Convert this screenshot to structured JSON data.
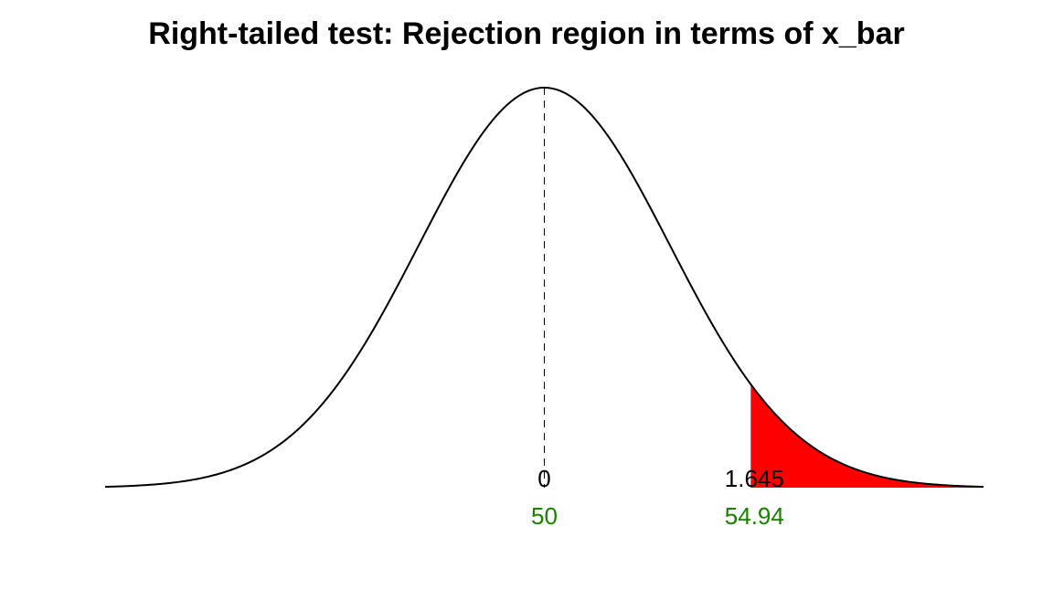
{
  "chart_data": {
    "type": "area",
    "title": "Right-tailed test: Rejection region in terms of x_bar",
    "distribution": "standard normal",
    "xlim": [
      -3.5,
      3.5
    ],
    "mean_z": 0,
    "critical_z": 1.645,
    "rejection_tail": "right",
    "z_labels": [
      "0",
      "1.645"
    ],
    "xbar_labels": [
      "50",
      "54.94"
    ],
    "mean_line_style": "dashed",
    "grid": false,
    "colors": {
      "curve": "#000000",
      "rejection_fill": "#ff0000",
      "z_label": "#000000",
      "xbar_label": "#1a8000"
    }
  }
}
